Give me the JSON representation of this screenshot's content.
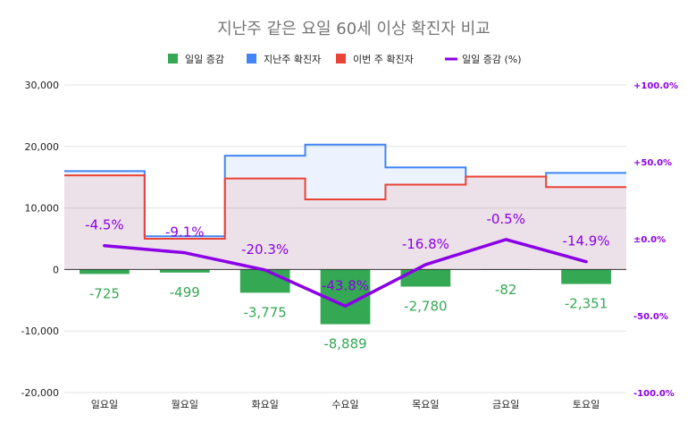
{
  "chart_data": {
    "type": "combo",
    "title": "지난주 같은 요일 60세 이상 확진자 비교",
    "categories": [
      "일요일",
      "월요일",
      "화요일",
      "수요일",
      "목요일",
      "금요일",
      "토요일"
    ],
    "series": [
      {
        "name": "일일 증감",
        "type": "bar",
        "axis": "left",
        "color": "#34a853",
        "values": [
          -725,
          -499,
          -3775,
          -8889,
          -2780,
          -82,
          -2351
        ],
        "labels": [
          "-725",
          "-499",
          "-3,775",
          "-8,889",
          "-2,780",
          "-82",
          "-2,351"
        ]
      },
      {
        "name": "지난주 확진자",
        "type": "stepped-area",
        "axis": "left",
        "color": "#4285f4",
        "values": [
          16000,
          5400,
          18500,
          20300,
          16600,
          15100,
          15700
        ]
      },
      {
        "name": "이번 주 확진자",
        "type": "stepped-area",
        "axis": "left",
        "color": "#ea4335",
        "values": [
          15300,
          5000,
          14800,
          11400,
          13800,
          15100,
          13400
        ]
      },
      {
        "name": "일일 증감 (%)",
        "type": "line",
        "axis": "right",
        "color": "#8b00e6",
        "values": [
          -4.5,
          -9.1,
          -20.3,
          -43.8,
          -16.8,
          -0.5,
          -14.9
        ],
        "labels": [
          "-4.5%",
          "-9.1%",
          "-20.3%",
          "-43.8%",
          "-16.8%",
          "-0.5%",
          "-14.9%"
        ]
      }
    ],
    "y_left": {
      "range": [
        -20000,
        30000
      ],
      "ticks": [
        -20000,
        -10000,
        0,
        10000,
        20000,
        30000
      ],
      "tick_labels": [
        "-20,000",
        "-10,000",
        "0",
        "10,000",
        "20,000",
        "30,000"
      ]
    },
    "y_right": {
      "range": [
        -100,
        100
      ],
      "ticks": [
        -100,
        -50,
        0,
        50,
        100
      ],
      "tick_labels": [
        "-100.0%",
        "-50.0%",
        "±0.0%",
        "+50.0%",
        "+100.0%"
      ]
    },
    "grid": true,
    "legend_position": "top"
  }
}
